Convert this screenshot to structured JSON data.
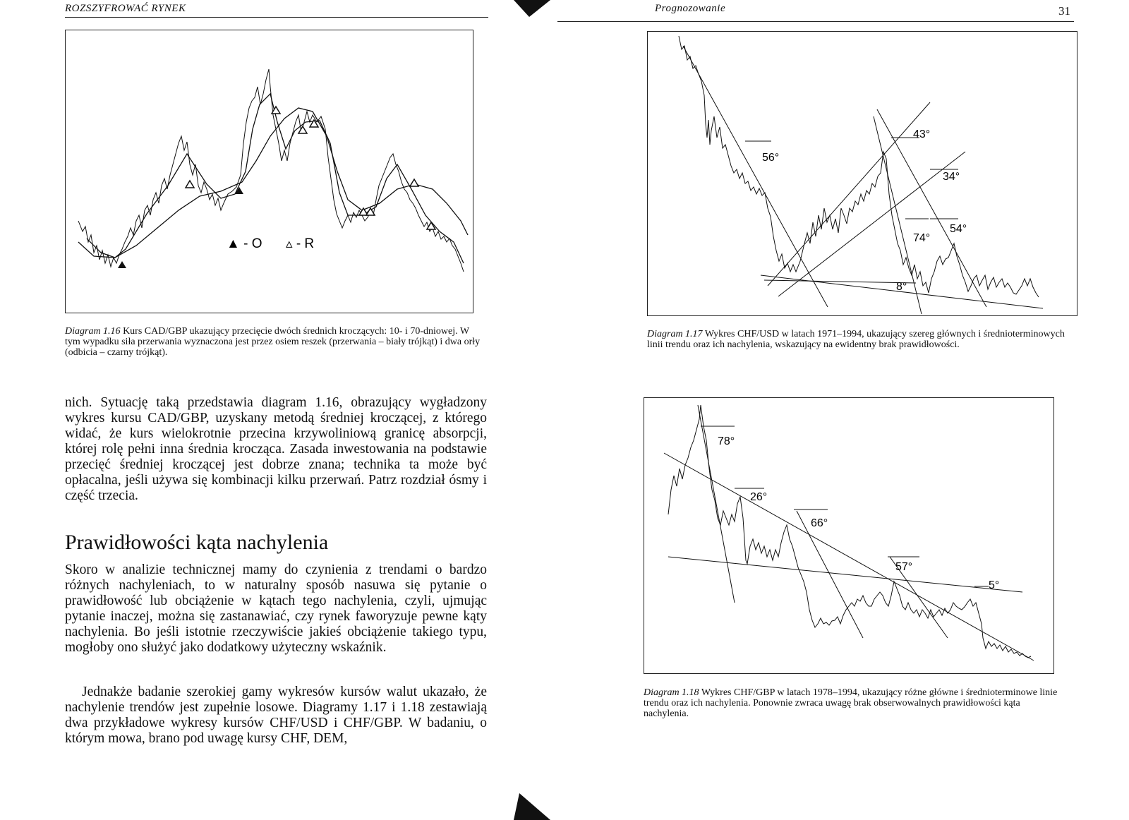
{
  "left_page": {
    "running_head": "ROZSZYFROWAĆ RYNEK",
    "figure_1_16": {
      "legend_o": "▲ - O",
      "legend_r": "▵ - R"
    },
    "caption_1_16": {
      "label": "Diagram 1.16",
      "text": "Kurs CAD/GBP ukazujący przecięcie dwóch średnich kroczących: 10- i 70-dniowej. W tym wypadku siła przerwania wyznaczona jest przez osiem reszek (przerwania – biały trójkąt) i dwa orły (odbicia – czarny trójkąt)."
    },
    "paragraph_1": "nich. Sytuację taką przedstawia diagram 1.16, obrazujący wygładzony wykres kursu CAD/GBP, uzyskany metodą średniej kroczącej, z którego widać, że kurs wielokrotnie przecina krzywoliniową granicę absorpcji, której rolę pełni inna średnia krocząca. Zasada inwestowania na podstawie przecięć średniej kroczącej jest dobrze znana; technika ta może być opłacalna, jeśli używa się kombinacji kilku przerwań. Patrz rozdział ósmy i część trzecia.",
    "section_heading": "Prawidłowości kąta nachylenia",
    "paragraph_2": "Skoro w analizie technicznej mamy do czynienia z trendami o bardzo różnych nachyleniach, to w naturalny sposób nasuwa się pytanie o prawidłowość lub obciążenie w kątach tego nachylenia, czyli, ujmując pytanie inaczej, można się zastanawiać, czy rynek faworyzuje pewne kąty nachylenia. Bo jeśli istotnie rzeczywiście jakieś obciążenie takiego typu, mogłoby ono służyć jako dodatkowy użyteczny wskaźnik.",
    "paragraph_3": "Jednakże badanie szerokiej gamy wykresów kursów walut ukazało, że nachylenie trendów jest zupełnie losowe. Diagramy 1.17 i 1.18 zestawiają dwa przykładowe wykresy kursów CHF/USD i CHF/GBP. W badaniu, o którym mowa, brano pod uwagę kursy CHF, DEM,"
  },
  "right_page": {
    "running_head": "Prognozowanie",
    "page_number": "31",
    "figure_1_17": {
      "angle_labels": [
        "56°",
        "43°",
        "34°",
        "54°",
        "74°",
        "8°"
      ]
    },
    "caption_1_17": {
      "label": "Diagram 1.17",
      "text": "Wykres CHF/USD w latach 1971–1994, ukazujący szereg głównych i średnioterminowych linii trendu oraz ich nachylenia, wskazujący na ewidentny brak prawidłowości."
    },
    "figure_1_18": {
      "angle_labels": [
        "78°",
        "26°",
        "66°",
        "57°",
        "5°"
      ]
    },
    "caption_1_18": {
      "label": "Diagram 1.18",
      "text": "Wykres CHF/GBP w latach 1978–1994, ukazujący różne główne i średnioterminowe linie trendu oraz ich nachylenia. Ponownie zwraca uwagę brak obserwowalnych prawidłowości kąta nachylenia."
    }
  }
}
